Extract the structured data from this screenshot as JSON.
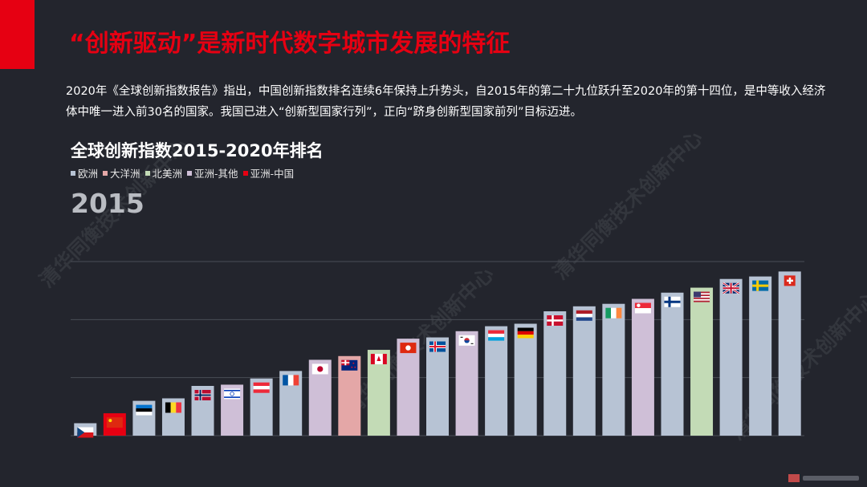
{
  "header": {
    "title": "“创新驱动”是新时代数字城市发展的特征"
  },
  "intro": {
    "paragraph": "2020年《全球创新指数报告》指出，中国创新指数排名连续6年保持上升势头，自2015年的第二十九位跃升至2020年的第十四位，是中等收入经济体中唯一进入前30名的国家。我国已进入“创新型国家行列”，正向“跻身创新型国家前列”目标迈进。"
  },
  "watermark": {
    "text": "清华同衡技术创新中心"
  },
  "colors": {
    "accent": "#e60012",
    "background": "#23252d",
    "europe": "#b7c3d4",
    "oceania": "#e4a7a7",
    "north_america": "#c3dbb6",
    "asia_other": "#cfbfd7",
    "asia_china": "#e60012"
  },
  "chart_data": {
    "type": "bar",
    "title": "全球创新指数2015-2020年排名",
    "frame_label": "2015",
    "legend": [
      {
        "label": "欧洲",
        "key": "europe"
      },
      {
        "label": "大洋洲",
        "key": "oceania"
      },
      {
        "label": "北美洲",
        "key": "north_america"
      },
      {
        "label": "亚洲-其他",
        "key": "asia_other"
      },
      {
        "label": "亚洲-中国",
        "key": "asia_china"
      }
    ],
    "ylim": [
      0,
      70
    ],
    "grid": true,
    "xlabel": "",
    "ylabel": "",
    "bars": [
      {
        "flag": "czech",
        "region": "europe",
        "value": 5
      },
      {
        "flag": "china",
        "region": "asia_china",
        "value": 9
      },
      {
        "flag": "estonia",
        "region": "europe",
        "value": 14
      },
      {
        "flag": "belgium",
        "region": "europe",
        "value": 15
      },
      {
        "flag": "norway",
        "region": "europe",
        "value": 20
      },
      {
        "flag": "israel",
        "region": "asia_other",
        "value": 20.5
      },
      {
        "flag": "austria",
        "region": "europe",
        "value": 23
      },
      {
        "flag": "france",
        "region": "europe",
        "value": 26
      },
      {
        "flag": "japan",
        "region": "asia_other",
        "value": 30.5
      },
      {
        "flag": "new-zealand",
        "region": "oceania",
        "value": 32
      },
      {
        "flag": "canada",
        "region": "north_america",
        "value": 34.5
      },
      {
        "flag": "hong-kong",
        "region": "asia_other",
        "value": 39
      },
      {
        "flag": "iceland",
        "region": "europe",
        "value": 39.5
      },
      {
        "flag": "south-korea",
        "region": "asia_other",
        "value": 42
      },
      {
        "flag": "luxembourg",
        "region": "europe",
        "value": 44
      },
      {
        "flag": "germany",
        "region": "europe",
        "value": 45
      },
      {
        "flag": "denmark",
        "region": "europe",
        "value": 50
      },
      {
        "flag": "netherlands",
        "region": "europe",
        "value": 52
      },
      {
        "flag": "ireland",
        "region": "europe",
        "value": 53
      },
      {
        "flag": "singapore",
        "region": "asia_other",
        "value": 55
      },
      {
        "flag": "finland",
        "region": "europe",
        "value": 57.5
      },
      {
        "flag": "united-states",
        "region": "north_america",
        "value": 59.5
      },
      {
        "flag": "united-kingdom",
        "region": "europe",
        "value": 63
      },
      {
        "flag": "sweden",
        "region": "europe",
        "value": 64
      },
      {
        "flag": "switzerland",
        "region": "europe",
        "value": 66
      }
    ]
  }
}
